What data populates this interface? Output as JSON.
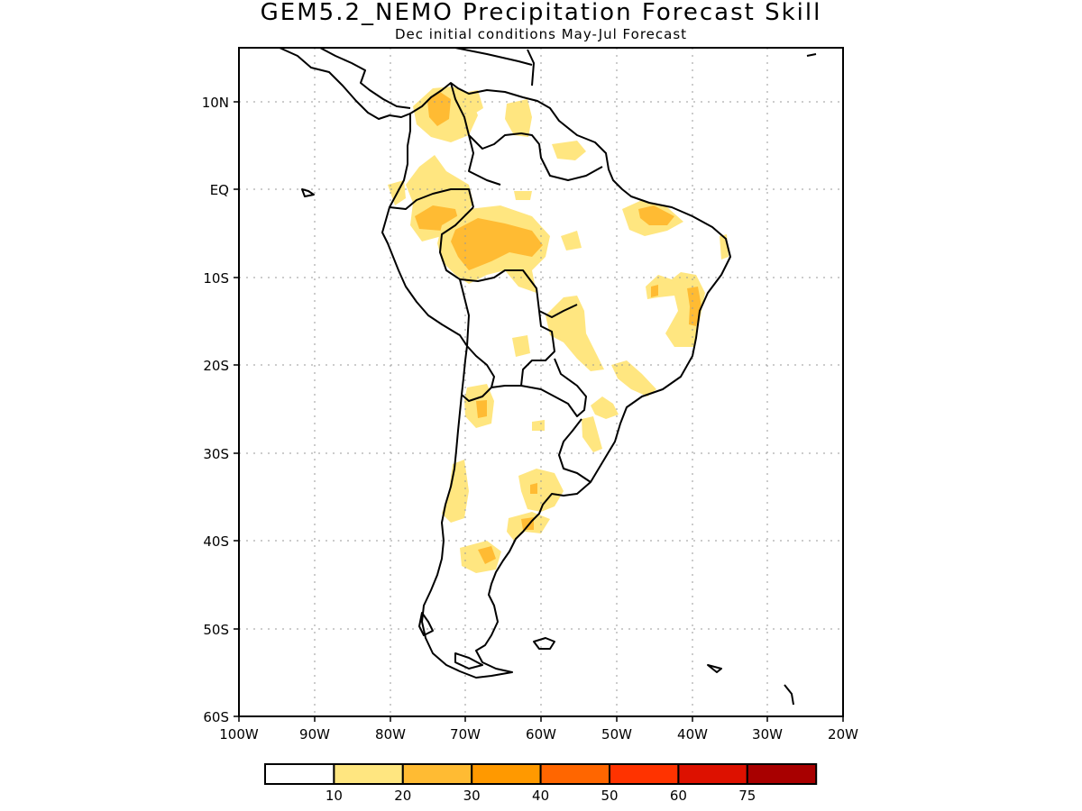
{
  "title": "GEM5.2_NEMO Precipitation Forecast Skill",
  "subtitle": "Dec initial conditions  May-Jul Forecast",
  "map": {
    "region": "South America",
    "lon_range": [
      -100,
      -20
    ],
    "lat_range": [
      -60,
      15
    ],
    "lon_ticks": [
      "100W",
      "90W",
      "80W",
      "70W",
      "60W",
      "50W",
      "40W",
      "30W",
      "20W"
    ],
    "lat_ticks": [
      "10N",
      "EQ",
      "10S",
      "20S",
      "30S",
      "40S",
      "50S",
      "60S"
    ],
    "gridlines": true
  },
  "colorbar": {
    "labels": [
      "10",
      "20",
      "30",
      "40",
      "50",
      "60",
      "75"
    ],
    "colors": [
      "#ffffff",
      "#ffe680",
      "#ffbb33",
      "#ff9900",
      "#ff6600",
      "#ff3300",
      "#dd1100",
      "#a80000"
    ]
  }
}
